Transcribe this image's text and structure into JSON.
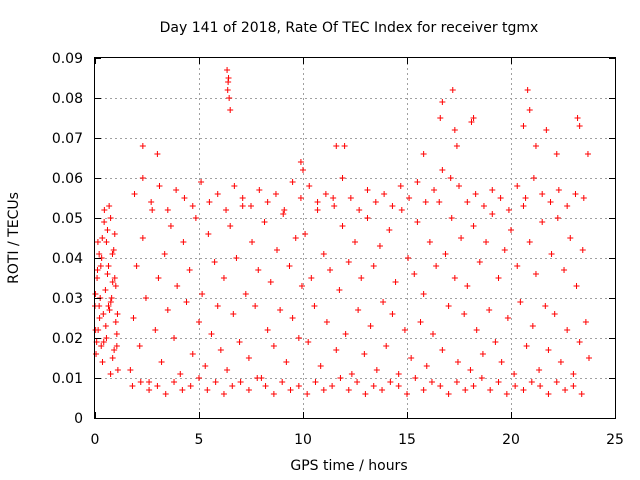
{
  "chart_data": {
    "type": "scatter",
    "title": "Day 141 of 2018, Rate Of TEC Index for receiver tgmx",
    "xlabel": "GPS time / hours",
    "ylabel": "ROTI / TECUs",
    "xlim": [
      0,
      25
    ],
    "ylim": [
      0,
      0.09
    ],
    "xticks": [
      0,
      5,
      10,
      15,
      20,
      25
    ],
    "yticks": [
      0,
      0.01,
      0.02,
      0.03,
      0.04,
      0.05,
      0.06,
      0.07,
      0.08,
      0.09
    ],
    "xtick_labels": [
      "0",
      "5",
      "10",
      "15",
      "20",
      "25"
    ],
    "ytick_labels": [
      "0",
      "0.01",
      "0.02",
      "0.03",
      "0.04",
      "0.05",
      "0.06",
      "0.07",
      "0.08",
      "0.09"
    ],
    "grid": true,
    "marker": "plus",
    "color": "#ff0000",
    "series": [
      {
        "x": [
          0.0,
          0.05,
          0.1,
          0.15,
          0.2,
          0.25,
          0.3,
          0.35,
          0.4,
          0.45,
          0.5,
          0.55,
          0.6,
          0.65,
          0.7,
          0.75,
          0.8,
          0.85,
          0.9,
          0.95,
          1.0,
          1.05,
          1.1,
          0.02,
          0.08,
          0.14,
          0.2,
          0.28,
          0.36,
          0.44,
          0.52,
          0.6,
          0.68,
          0.76,
          0.84,
          0.92,
          1.0,
          1.08,
          0.03,
          0.12,
          0.22,
          0.32,
          0.42,
          0.55,
          0.65,
          0.75,
          0.85,
          0.95,
          1.05,
          1.7,
          1.85,
          2.0,
          2.15,
          2.3,
          2.45,
          2.6,
          2.75,
          2.9,
          3.05,
          3.2,
          3.35,
          3.5,
          3.65,
          3.8,
          3.95,
          4.1,
          4.25,
          4.4,
          4.55,
          4.7,
          4.85,
          5.0,
          5.15,
          5.3,
          5.45,
          5.6,
          5.75,
          5.9,
          6.05,
          6.2,
          6.35,
          6.5,
          6.65,
          6.8,
          6.95,
          7.1,
          7.25,
          7.4,
          7.55,
          7.7,
          7.85,
          8.0,
          8.15,
          8.3,
          8.45,
          8.6,
          8.75,
          8.9,
          9.05,
          9.2,
          9.35,
          9.5,
          9.65,
          9.8,
          9.95,
          10.1,
          10.25,
          10.4,
          10.55,
          10.7,
          10.85,
          11.0,
          11.15,
          11.3,
          11.45,
          11.6,
          11.75,
          11.9,
          12.05,
          12.2,
          12.35,
          12.5,
          12.65,
          12.8,
          12.95,
          13.1,
          13.25,
          13.4,
          13.55,
          13.7,
          13.85,
          14.0,
          14.15,
          14.3,
          14.45,
          14.6,
          14.75,
          14.9,
          15.05,
          15.2,
          15.35,
          15.5,
          15.65,
          15.8,
          15.95,
          16.1,
          16.25,
          16.4,
          16.55,
          16.7,
          16.85,
          17.0,
          17.15,
          17.3,
          17.45,
          17.6,
          17.75,
          17.9,
          18.05,
          18.2,
          18.35,
          18.5,
          18.65,
          18.8,
          18.95,
          19.1,
          19.25,
          19.4,
          19.55,
          19.7,
          19.85,
          20.0,
          20.15,
          20.3,
          20.45,
          20.6,
          20.75,
          20.9,
          21.05,
          21.2,
          21.35,
          21.5,
          21.65,
          21.8,
          21.95,
          22.1,
          22.25,
          22.4,
          22.55,
          22.7,
          22.85,
          23.0,
          23.15,
          23.3,
          23.45,
          23.6,
          23.75,
          1.8,
          2.2,
          2.6,
          3.0,
          3.4,
          3.8,
          4.2,
          4.6,
          5.0,
          5.4,
          5.8,
          6.2,
          6.6,
          7.0,
          7.4,
          7.8,
          8.2,
          8.6,
          9.0,
          9.4,
          9.8,
          10.2,
          10.6,
          11.0,
          11.4,
          11.8,
          12.2,
          12.6,
          13.0,
          13.4,
          13.8,
          14.2,
          14.6,
          15.0,
          15.4,
          15.8,
          16.2,
          16.6,
          17.0,
          17.4,
          17.8,
          18.2,
          18.6,
          19.0,
          19.4,
          19.8,
          20.2,
          20.6,
          21.0,
          21.4,
          21.8,
          22.2,
          22.6,
          23.0,
          23.4,
          1.9,
          2.3,
          2.7,
          3.1,
          3.5,
          3.9,
          4.3,
          4.7,
          5.1,
          5.5,
          5.9,
          6.3,
          6.7,
          7.1,
          7.5,
          7.9,
          8.3,
          8.7,
          9.1,
          9.5,
          9.9,
          10.3,
          10.7,
          11.1,
          11.5,
          11.9,
          12.3,
          12.7,
          13.1,
          13.5,
          13.9,
          14.3,
          14.7,
          15.1,
          15.5,
          15.9,
          16.3,
          16.7,
          17.1,
          17.5,
          17.9,
          18.3,
          18.7,
          19.1,
          19.5,
          19.9,
          20.3,
          20.7,
          21.1,
          21.5,
          21.9,
          22.3,
          22.7,
          23.1,
          23.5,
          6.35,
          6.4,
          6.45,
          6.5,
          6.38,
          6.42,
          2.3,
          3.0,
          9.9,
          10.0,
          11.6,
          12.0,
          15.8,
          16.6,
          16.7,
          17.2,
          17.3,
          17.4,
          18.1,
          18.2,
          20.6,
          20.8,
          20.9,
          21.2,
          21.7,
          22.2,
          23.2,
          23.3,
          23.7
        ],
        "y": [
          0.028,
          0.016,
          0.035,
          0.022,
          0.041,
          0.03,
          0.018,
          0.045,
          0.026,
          0.052,
          0.032,
          0.02,
          0.047,
          0.038,
          0.027,
          0.05,
          0.03,
          0.015,
          0.042,
          0.035,
          0.024,
          0.021,
          0.012,
          0.031,
          0.019,
          0.044,
          0.028,
          0.038,
          0.014,
          0.049,
          0.023,
          0.036,
          0.053,
          0.029,
          0.041,
          0.017,
          0.033,
          0.026,
          0.022,
          0.037,
          0.025,
          0.04,
          0.019,
          0.044,
          0.028,
          0.011,
          0.034,
          0.046,
          0.018,
          0.012,
          0.025,
          0.038,
          0.018,
          0.045,
          0.03,
          0.009,
          0.052,
          0.022,
          0.035,
          0.014,
          0.041,
          0.027,
          0.048,
          0.02,
          0.033,
          0.011,
          0.044,
          0.029,
          0.037,
          0.016,
          0.05,
          0.024,
          0.031,
          0.013,
          0.046,
          0.021,
          0.039,
          0.028,
          0.017,
          0.035,
          0.012,
          0.048,
          0.026,
          0.04,
          0.019,
          0.053,
          0.031,
          0.015,
          0.044,
          0.028,
          0.037,
          0.01,
          0.049,
          0.022,
          0.034,
          0.018,
          0.042,
          0.027,
          0.051,
          0.014,
          0.038,
          0.025,
          0.045,
          0.02,
          0.033,
          0.046,
          0.019,
          0.035,
          0.028,
          0.052,
          0.013,
          0.041,
          0.024,
          0.037,
          0.055,
          0.017,
          0.032,
          0.048,
          0.021,
          0.039,
          0.011,
          0.044,
          0.027,
          0.035,
          0.016,
          0.05,
          0.023,
          0.038,
          0.012,
          0.043,
          0.029,
          0.018,
          0.047,
          0.026,
          0.034,
          0.011,
          0.052,
          0.022,
          0.04,
          0.015,
          0.036,
          0.049,
          0.024,
          0.031,
          0.013,
          0.044,
          0.021,
          0.038,
          0.054,
          0.017,
          0.041,
          0.028,
          0.05,
          0.035,
          0.014,
          0.045,
          0.026,
          0.033,
          0.012,
          0.048,
          0.022,
          0.039,
          0.016,
          0.044,
          0.027,
          0.051,
          0.019,
          0.035,
          0.014,
          0.042,
          0.025,
          0.047,
          0.011,
          0.038,
          0.029,
          0.053,
          0.018,
          0.044,
          0.023,
          0.036,
          0.012,
          0.049,
          0.028,
          0.017,
          0.041,
          0.026,
          0.05,
          0.014,
          0.037,
          0.022,
          0.045,
          0.011,
          0.033,
          0.019,
          0.042,
          0.024,
          0.015,
          0.008,
          0.009,
          0.007,
          0.008,
          0.006,
          0.009,
          0.007,
          0.008,
          0.01,
          0.007,
          0.009,
          0.006,
          0.008,
          0.009,
          0.007,
          0.01,
          0.008,
          0.006,
          0.009,
          0.007,
          0.008,
          0.006,
          0.009,
          0.007,
          0.008,
          0.01,
          0.007,
          0.009,
          0.006,
          0.008,
          0.007,
          0.009,
          0.008,
          0.006,
          0.01,
          0.007,
          0.009,
          0.008,
          0.006,
          0.009,
          0.007,
          0.008,
          0.01,
          0.007,
          0.009,
          0.006,
          0.008,
          0.007,
          0.009,
          0.008,
          0.006,
          0.009,
          0.007,
          0.008,
          0.006,
          0.056,
          0.06,
          0.054,
          0.058,
          0.052,
          0.057,
          0.055,
          0.053,
          0.059,
          0.054,
          0.056,
          0.052,
          0.058,
          0.055,
          0.053,
          0.057,
          0.054,
          0.056,
          0.052,
          0.059,
          0.055,
          0.058,
          0.054,
          0.056,
          0.053,
          0.06,
          0.055,
          0.052,
          0.057,
          0.054,
          0.056,
          0.053,
          0.058,
          0.055,
          0.059,
          0.054,
          0.057,
          0.062,
          0.06,
          0.058,
          0.054,
          0.056,
          0.053,
          0.057,
          0.055,
          0.052,
          0.058,
          0.055,
          0.06,
          0.056,
          0.054,
          0.057,
          0.053,
          0.056,
          0.055,
          0.087,
          0.084,
          0.08,
          0.077,
          0.082,
          0.085,
          0.068,
          0.066,
          0.064,
          0.062,
          0.068,
          0.068,
          0.066,
          0.075,
          0.079,
          0.082,
          0.072,
          0.068,
          0.074,
          0.075,
          0.073,
          0.082,
          0.077,
          0.068,
          0.072,
          0.066,
          0.075,
          0.073,
          0.066
        ]
      }
    ]
  }
}
